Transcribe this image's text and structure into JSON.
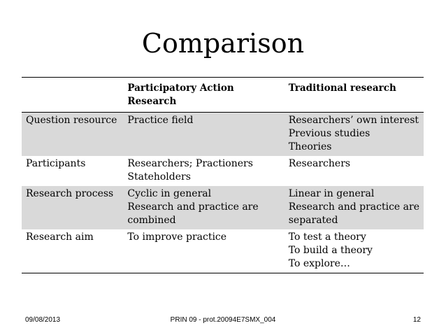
{
  "title": "Comparison",
  "table": {
    "headers": [
      "",
      "Participatory Action Research",
      "Traditional research"
    ],
    "rows": [
      {
        "shaded": true,
        "label": "Question resource",
        "par": [
          "Practice field"
        ],
        "traditional": [
          "Researchers’ own interest",
          "Previous studies",
          "Theories"
        ]
      },
      {
        "shaded": false,
        "label": "Participants",
        "par": [
          "Researchers; Practioners",
          "Stateholders"
        ],
        "traditional": [
          "Researchers"
        ]
      },
      {
        "shaded": true,
        "label": "Research process",
        "par": [
          "Cyclic in general",
          "Research and practice are",
          "combined"
        ],
        "traditional": [
          "Linear in general",
          "Research and practice are",
          "separated"
        ]
      },
      {
        "shaded": false,
        "label": "Research aim",
        "par": [
          "To improve practice"
        ],
        "traditional": [
          "To test a theory",
          "To build a theory",
          "To explore…"
        ]
      }
    ]
  },
  "footer": {
    "date": "09/08/2013",
    "center": "PRIN 09 - prot.20094E7SMX_004",
    "page": "12"
  }
}
